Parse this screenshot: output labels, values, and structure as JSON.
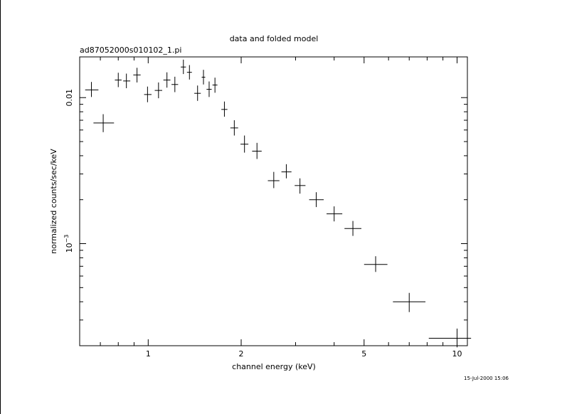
{
  "chart_data": {
    "type": "scatter",
    "title": "data and folded model",
    "subtitle": "ad87052000s010102_1.pi",
    "xlabel": "channel energy (keV)",
    "ylabel": "normalized counts/sec/keV",
    "x_scale": "log",
    "y_scale": "log",
    "xlim": [
      0.6,
      10.8
    ],
    "ylim": [
      0.0002,
      0.019
    ],
    "x_ticks": [
      {
        "value": 1,
        "label": "1"
      },
      {
        "value": 2,
        "label": "2"
      },
      {
        "value": 5,
        "label": "5"
      },
      {
        "value": 10,
        "label": "10"
      }
    ],
    "y_ticks": [
      {
        "value": 0.001,
        "label": "10",
        "exponent": "−3"
      },
      {
        "value": 0.01,
        "label": "0.01",
        "exponent": ""
      }
    ],
    "grid": false,
    "footer": "15-Jul-2000 15:06",
    "series": [
      {
        "points": [
          {
            "x": 0.655,
            "y": 0.0113,
            "xlo": 0.625,
            "xhi": 0.69,
            "ylo": 0.0101,
            "yhi": 0.0128
          },
          {
            "x": 0.715,
            "y": 0.0067,
            "xlo": 0.665,
            "xhi": 0.775,
            "ylo": 0.0058,
            "yhi": 0.0077
          },
          {
            "x": 0.8,
            "y": 0.0132,
            "xlo": 0.78,
            "xhi": 0.82,
            "ylo": 0.0118,
            "yhi": 0.0148
          },
          {
            "x": 0.85,
            "y": 0.013,
            "xlo": 0.83,
            "xhi": 0.875,
            "ylo": 0.0116,
            "yhi": 0.0146
          },
          {
            "x": 0.92,
            "y": 0.0143,
            "xlo": 0.895,
            "xhi": 0.945,
            "ylo": 0.0127,
            "yhi": 0.016
          },
          {
            "x": 0.995,
            "y": 0.0105,
            "xlo": 0.97,
            "xhi": 1.025,
            "ylo": 0.0093,
            "yhi": 0.0119
          },
          {
            "x": 1.08,
            "y": 0.0112,
            "xlo": 1.05,
            "xhi": 1.11,
            "ylo": 0.0099,
            "yhi": 0.0127
          },
          {
            "x": 1.15,
            "y": 0.0132,
            "xlo": 1.12,
            "xhi": 1.18,
            "ylo": 0.0117,
            "yhi": 0.0149
          },
          {
            "x": 1.22,
            "y": 0.0123,
            "xlo": 1.19,
            "xhi": 1.25,
            "ylo": 0.0109,
            "yhi": 0.0139
          },
          {
            "x": 1.3,
            "y": 0.0162,
            "xlo": 1.275,
            "xhi": 1.325,
            "ylo": 0.0145,
            "yhi": 0.0182
          },
          {
            "x": 1.36,
            "y": 0.0149,
            "xlo": 1.335,
            "xhi": 1.385,
            "ylo": 0.0133,
            "yhi": 0.0167
          },
          {
            "x": 1.445,
            "y": 0.0107,
            "xlo": 1.41,
            "xhi": 1.48,
            "ylo": 0.0095,
            "yhi": 0.0121
          },
          {
            "x": 1.51,
            "y": 0.0138,
            "xlo": 1.49,
            "xhi": 1.53,
            "ylo": 0.0123,
            "yhi": 0.0155
          },
          {
            "x": 1.575,
            "y": 0.0114,
            "xlo": 1.545,
            "xhi": 1.605,
            "ylo": 0.0101,
            "yhi": 0.0129
          },
          {
            "x": 1.645,
            "y": 0.0122,
            "xlo": 1.615,
            "xhi": 1.675,
            "ylo": 0.0108,
            "yhi": 0.0137
          },
          {
            "x": 1.765,
            "y": 0.0083,
            "xlo": 1.725,
            "xhi": 1.805,
            "ylo": 0.0074,
            "yhi": 0.0094
          },
          {
            "x": 1.9,
            "y": 0.0062,
            "xlo": 1.845,
            "xhi": 1.955,
            "ylo": 0.0055,
            "yhi": 0.007
          },
          {
            "x": 2.05,
            "y": 0.0048,
            "xlo": 1.99,
            "xhi": 2.11,
            "ylo": 0.0042,
            "yhi": 0.0055
          },
          {
            "x": 2.25,
            "y": 0.0043,
            "xlo": 2.17,
            "xhi": 2.33,
            "ylo": 0.0038,
            "yhi": 0.0049
          },
          {
            "x": 2.55,
            "y": 0.0027,
            "xlo": 2.44,
            "xhi": 2.66,
            "ylo": 0.0024,
            "yhi": 0.0031
          },
          {
            "x": 2.8,
            "y": 0.0031,
            "xlo": 2.7,
            "xhi": 2.91,
            "ylo": 0.0028,
            "yhi": 0.0035
          },
          {
            "x": 3.1,
            "y": 0.0025,
            "xlo": 2.98,
            "xhi": 3.23,
            "ylo": 0.0022,
            "yhi": 0.0028
          },
          {
            "x": 3.5,
            "y": 0.002,
            "xlo": 3.32,
            "xhi": 3.7,
            "ylo": 0.00178,
            "yhi": 0.00225
          },
          {
            "x": 4.0,
            "y": 0.0016,
            "xlo": 3.78,
            "xhi": 4.25,
            "ylo": 0.00142,
            "yhi": 0.0018
          },
          {
            "x": 4.6,
            "y": 0.00127,
            "xlo": 4.32,
            "xhi": 4.9,
            "ylo": 0.00113,
            "yhi": 0.00143
          },
          {
            "x": 5.45,
            "y": 0.00072,
            "xlo": 5.0,
            "xhi": 5.95,
            "ylo": 0.00064,
            "yhi": 0.00082
          },
          {
            "x": 7.0,
            "y": 0.0004,
            "xlo": 6.2,
            "xhi": 7.9,
            "ylo": 0.00034,
            "yhi": 0.00046
          },
          {
            "x": 10.0,
            "y": 0.000225,
            "xlo": 8.1,
            "xhi": 11.1,
            "ylo": 0.000195,
            "yhi": 0.000262
          }
        ]
      }
    ]
  }
}
